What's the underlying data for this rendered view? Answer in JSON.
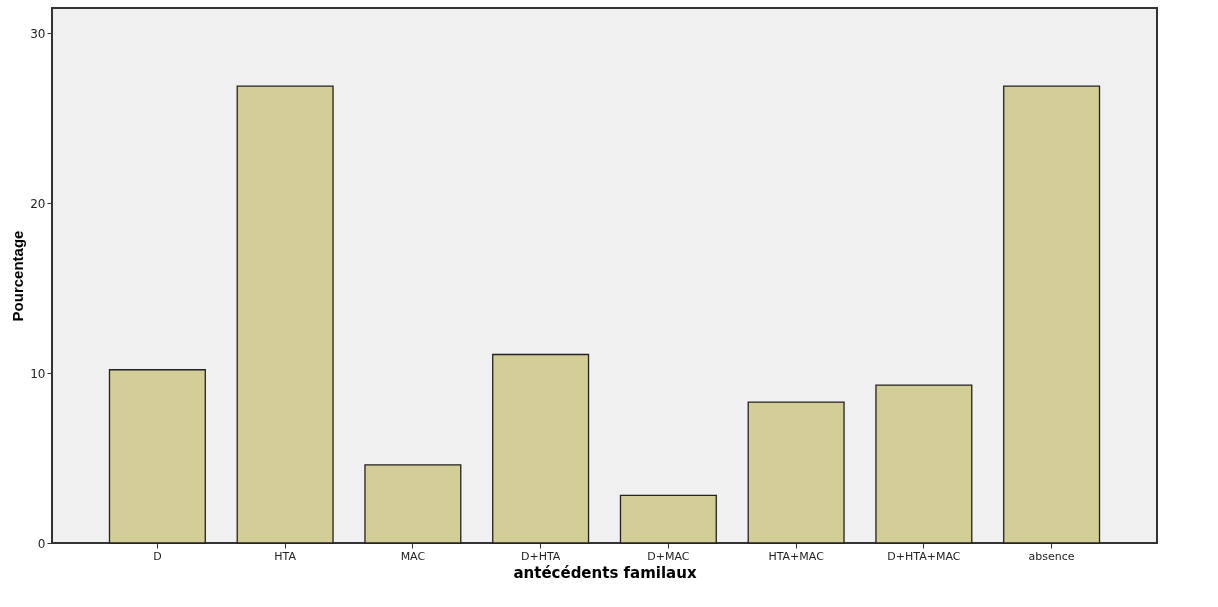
{
  "chart_data": {
    "type": "bar",
    "xlabel": "antécédents familaux",
    "ylabel": "Pourcentage",
    "categories": [
      "D",
      "HTA",
      "MAC",
      "D+HTA",
      "D+MAC",
      "HTA+MAC",
      "D+HTA+MAC",
      "absence"
    ],
    "values": [
      10.2,
      26.9,
      4.6,
      11.1,
      2.8,
      8.3,
      9.3,
      26.9
    ],
    "color": "#d3cd98",
    "ylim": [
      0,
      31.5
    ],
    "yticks": [
      0,
      10,
      20,
      30
    ],
    "grid": false
  }
}
